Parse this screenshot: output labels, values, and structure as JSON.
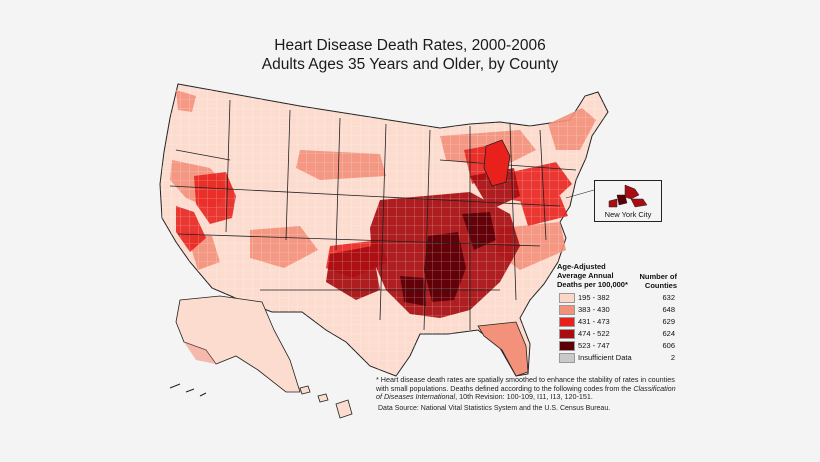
{
  "title": {
    "line1": "Heart Disease Death Rates, 2000-2006",
    "line2": "Adults Ages 35 Years and Older, by County"
  },
  "inset": {
    "label": "New York City"
  },
  "legend": {
    "heading": "Age-Adjusted Average Annual Deaths per 100,000*",
    "count_heading": "Number of Counties",
    "items": [
      {
        "label": "195 - 382",
        "count": "632",
        "color": "#fcd6c8"
      },
      {
        "label": "383 - 430",
        "count": "648",
        "color": "#f4917b"
      },
      {
        "label": "431 - 473",
        "count": "629",
        "color": "#e8211c"
      },
      {
        "label": "474 - 522",
        "count": "624",
        "color": "#a80d12"
      },
      {
        "label": "523 - 747",
        "count": "606",
        "color": "#5a0006"
      },
      {
        "label": "Insufficient Data",
        "count": "2",
        "color": "#c9c9c9"
      }
    ]
  },
  "footnote": {
    "part1": "* Heart disease death rates are spatially smoothed to enhance the stability of rates in counties with small populations. Deaths defined according to the following codes from the ",
    "classification": "Classification of Diseases International",
    "part2": ", 10th Revision: 100-109, I11, I13, 120-151."
  },
  "source": "Data Source: National Vital Statistics System and the U.S. Census Bureau.",
  "colors": {
    "background": "#f4f4f4",
    "border": "#333333",
    "outline": "#222222"
  }
}
